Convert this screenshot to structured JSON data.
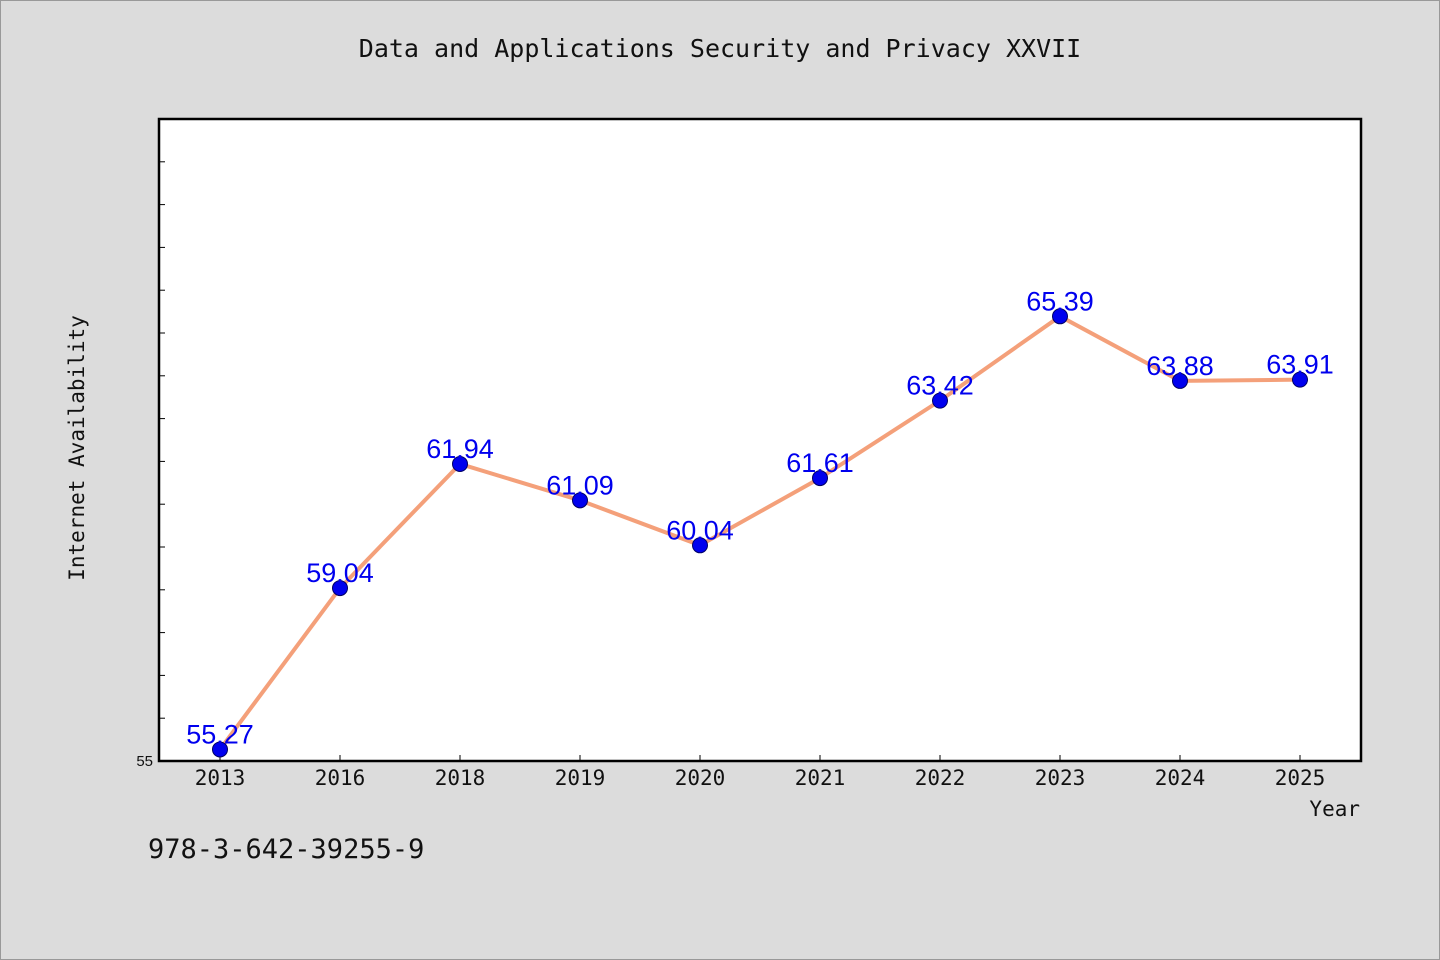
{
  "chart_data": {
    "type": "line",
    "title": "Data and Applications Security and Privacy XXVII",
    "xlabel": "Year",
    "ylabel": "Internet Availability",
    "categories": [
      "2013",
      "2016",
      "2018",
      "2019",
      "2020",
      "2021",
      "2022",
      "2023",
      "2024",
      "2025"
    ],
    "series": [
      {
        "values": [
          55.27,
          59.04,
          61.94,
          61.09,
          60.04,
          61.61,
          63.42,
          65.39,
          63.88,
          63.91
        ]
      }
    ],
    "data_labels": [
      "55.27",
      "59.04",
      "61.94",
      "61.09",
      "60.04",
      "61.61",
      "63.42",
      "65.39",
      "63.88",
      "63.91"
    ],
    "y_tick_labels": [
      "55"
    ],
    "ylim": [
      55,
      70
    ],
    "grid": false,
    "legend": "none",
    "colors": {
      "line": "#f4a07a",
      "marker": "#0000ee",
      "label": "#0000ee",
      "background": "#dcdcdc",
      "plot_background": "#ffffff"
    }
  },
  "footer": {
    "code": "978-3-642-39255-9"
  }
}
